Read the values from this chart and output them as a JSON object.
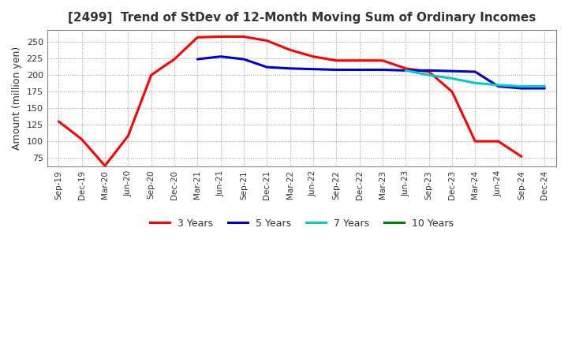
{
  "title": "[2499]  Trend of StDev of 12-Month Moving Sum of Ordinary Incomes",
  "ylabel": "Amount (million yen)",
  "background_color": "#ffffff",
  "plot_bg_color": "#ffffff",
  "grid_color": "#999999",
  "x_labels": [
    "Sep-19",
    "Dec-19",
    "Mar-20",
    "Jun-20",
    "Sep-20",
    "Dec-20",
    "Mar-21",
    "Jun-21",
    "Sep-21",
    "Dec-21",
    "Mar-22",
    "Jun-22",
    "Sep-22",
    "Dec-22",
    "Mar-23",
    "Jun-23",
    "Sep-23",
    "Dec-23",
    "Mar-24",
    "Jun-24",
    "Sep-24",
    "Dec-24"
  ],
  "series": {
    "3 Years": {
      "color": "#ff0000",
      "linewidth": 2.2,
      "values": [
        130,
        103,
        63,
        108,
        200,
        224,
        257,
        258,
        258,
        252,
        238,
        228,
        222,
        222,
        222,
        210,
        205,
        175,
        100,
        100,
        77,
        null
      ]
    },
    "5 Years": {
      "color": "#0000cc",
      "linewidth": 2.2,
      "values": [
        null,
        null,
        null,
        null,
        null,
        null,
        224,
        228,
        224,
        212,
        210,
        209,
        208,
        208,
        208,
        207,
        207,
        206,
        205,
        183,
        180,
        180
      ]
    },
    "7 Years": {
      "color": "#00cccc",
      "linewidth": 2.2,
      "values": [
        null,
        null,
        null,
        null,
        null,
        null,
        null,
        null,
        null,
        null,
        null,
        null,
        null,
        null,
        null,
        207,
        200,
        195,
        188,
        185,
        183,
        183
      ]
    },
    "10 Years": {
      "color": "#008000",
      "linewidth": 2.2,
      "values": [
        null,
        null,
        null,
        null,
        null,
        null,
        null,
        null,
        null,
        null,
        null,
        null,
        null,
        null,
        null,
        null,
        null,
        null,
        null,
        null,
        null,
        null
      ]
    }
  },
  "ylim": [
    62,
    268
  ],
  "yticks": [
    75,
    100,
    125,
    150,
    175,
    200,
    225,
    250
  ],
  "legend_labels": [
    "3 Years",
    "5 Years",
    "7 Years",
    "10 Years"
  ],
  "legend_colors": [
    "#ff0000",
    "#0000cc",
    "#00cccc",
    "#008000"
  ]
}
